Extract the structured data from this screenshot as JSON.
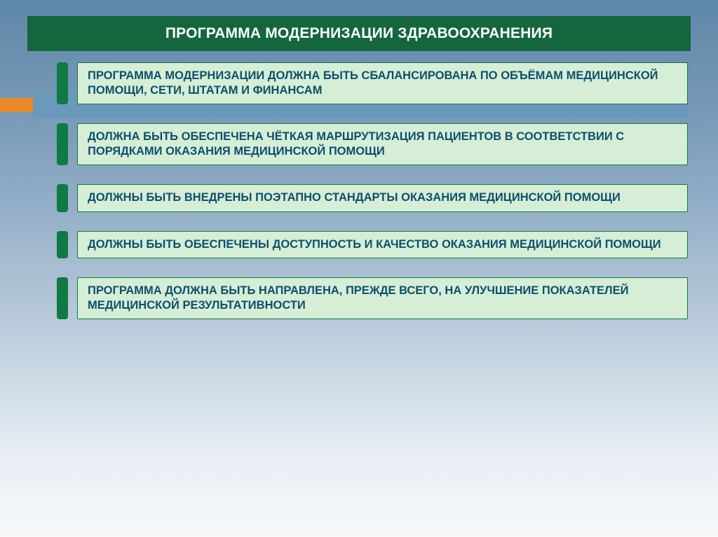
{
  "colors": {
    "title_bar_bg": "#14663f",
    "title_text": "#ffffff",
    "accent_orange": "#e88a2a",
    "accent_blue": "#6a99bc",
    "marker_green": "#0f7a42",
    "item_bg": "#d5eed5",
    "item_border": "#0f7a42",
    "item_text": "#0d4f6f",
    "slide_bg_top": "#5f87a8",
    "slide_bg_bottom": "#f7f9fb"
  },
  "title": "ПРОГРАММА МОДЕРНИЗАЦИИ ЗДРАВООХРАНЕНИЯ",
  "items": [
    {
      "text": "ПРОГРАММА МОДЕРНИЗАЦИИ ДОЛЖНА БЫТЬ СБАЛАНСИРОВАНА ПО ОБЪЁМАМ МЕДИЦИНСКОЙ ПОМОЩИ, СЕТИ, ШТАТАМ И ФИНАНСАМ"
    },
    {
      "text": "ДОЛЖНА БЫТЬ ОБЕСПЕЧЕНА ЧЁТКАЯ МАРШРУТИЗАЦИЯ ПАЦИЕНТОВ В СООТВЕТСТВИИ С ПОРЯДКАМИ ОКАЗАНИЯ МЕДИЦИНСКОЙ ПОМОЩИ"
    },
    {
      "text": "ДОЛЖНЫ БЫТЬ ВНЕДРЕНЫ ПОЭТАПНО СТАНДАРТЫ ОКАЗАНИЯ МЕДИЦИНСКОЙ ПОМОЩИ"
    },
    {
      "text": "ДОЛЖНЫ БЫТЬ ОБЕСПЕЧЕНЫ ДОСТУПНОСТЬ И КАЧЕСТВО ОКАЗАНИЯ МЕДИЦИНСКОЙ ПОМОЩИ"
    },
    {
      "text": "ПРОГРАММА ДОЛЖНА БЫТЬ НАПРАВЛЕНА, ПРЕЖДЕ ВСЕГО, НА УЛУЧШЕНИЕ ПОКАЗАТЕЛЕЙ МЕДИЦИНСКОЙ РЕЗУЛЬТАТИВНОСТИ"
    }
  ]
}
